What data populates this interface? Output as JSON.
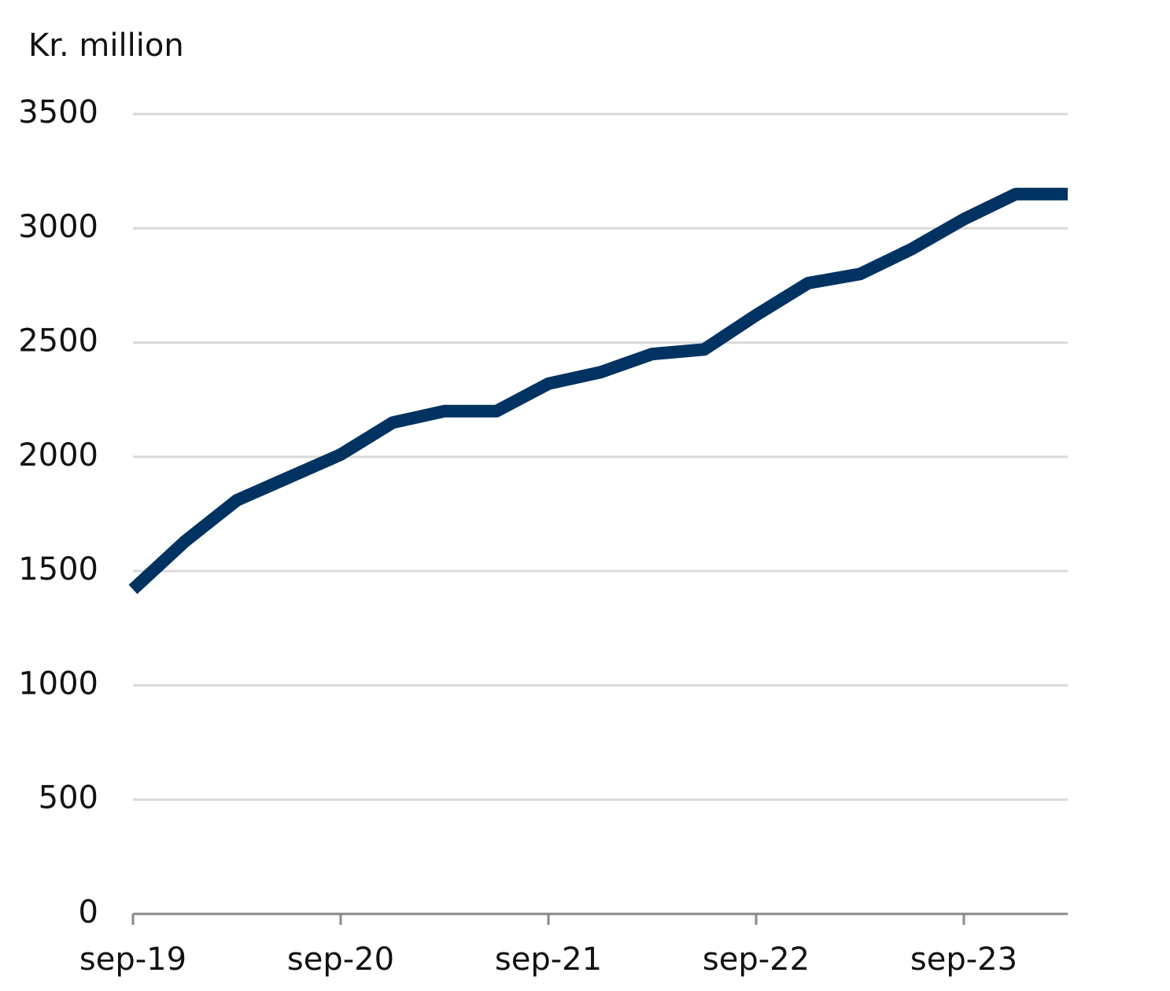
{
  "chart_data": {
    "type": "line",
    "y_axis_label": "Kr. million",
    "categories": [
      "sep-19",
      null,
      null,
      null,
      "sep-20",
      null,
      null,
      null,
      "sep-21",
      null,
      null,
      null,
      "sep-22",
      null,
      null,
      null,
      "sep-23",
      null,
      null
    ],
    "series": [
      {
        "name": "Kr. million",
        "color": "#003361",
        "values": [
          1420,
          1630,
          1810,
          1910,
          2010,
          2150,
          2200,
          2200,
          2320,
          2370,
          2450,
          2470,
          2620,
          2760,
          2800,
          2910,
          3040,
          3150,
          3150
        ]
      }
    ],
    "ylim": [
      0,
      3500
    ],
    "yticks": [
      0,
      500,
      1000,
      1500,
      2000,
      2500,
      3000,
      3500
    ],
    "grid": true
  }
}
